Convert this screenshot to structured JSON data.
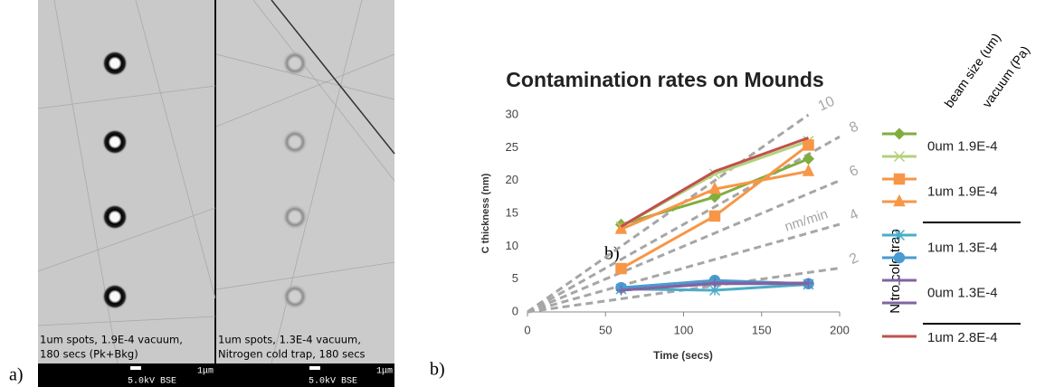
{
  "figure": {
    "panel_a_label": "a)",
    "panel_b_label": "b)",
    "images": [
      {
        "caption": [
          "1um spots, 1.9E-4 vacuum,",
          "180 secs (Pk+Bkg)"
        ],
        "scale": "1μm",
        "info": "5.0kV  BSE"
      },
      {
        "caption": [
          "1um spots, 1.3E-4 vacuum,",
          "Nitrogen cold trap, 180 secs"
        ],
        "scale": "1μm",
        "info": "5.0kV  BSE"
      }
    ]
  },
  "chart_data": {
    "type": "line",
    "title": "Contamination rates on Mounds",
    "x_label": "Time (secs)",
    "y_label": "C thickness (nm)",
    "x": [
      60,
      120,
      180
    ],
    "xlim": [
      0,
      200
    ],
    "xticks": [
      0,
      50,
      100,
      150,
      200
    ],
    "ylim": [
      0,
      30
    ],
    "yticks": [
      0,
      5,
      10,
      15,
      20,
      25,
      30
    ],
    "grid": false,
    "legend": "right",
    "legend_headers": [
      "beam size (um)",
      "vacuum (Pa)"
    ],
    "legend_side_label": "Nitro cold trap",
    "annotation": "b)",
    "rate_lines": {
      "values": [
        10,
        8,
        6,
        4,
        2
      ],
      "label": "nm/min",
      "color": "#a6a6a6"
    },
    "series": [
      {
        "name": "0um 1.9E-4",
        "lines": [
          {
            "color": "#7fae3e",
            "marker": "diamond",
            "values": [
              13.3,
              17.5,
              23.3
            ]
          },
          {
            "color": "#b3d17b",
            "marker": "x",
            "values": [
              13.0,
              21.0,
              26.0
            ]
          }
        ]
      },
      {
        "name": "1um 1.9E-4",
        "lines": [
          {
            "color": "#f79646",
            "marker": "square",
            "values": [
              6.6,
              14.6,
              25.4
            ]
          },
          {
            "color": "#f79646",
            "marker": "triangle",
            "values": [
              12.6,
              18.7,
              21.4
            ]
          }
        ]
      },
      {
        "name": "1um 1.3E-4",
        "lines": [
          {
            "color": "#4bacc6",
            "marker": "asterisk",
            "values": [
              3.5,
              3.3,
              4.2
            ]
          },
          {
            "color": "#4a9bd0",
            "marker": "circle",
            "values": [
              3.7,
              4.8,
              4.3
            ]
          }
        ]
      },
      {
        "name": "0um 1.3E-4",
        "lines": [
          {
            "color": "#8064a2",
            "marker": "plus",
            "values": [
              3.3,
              4.4,
              4.4
            ]
          },
          {
            "color": "#8064a2",
            "marker": "none",
            "values": [
              3.3,
              4.3,
              4.3
            ]
          }
        ]
      },
      {
        "name": "1um 2.8E-4",
        "lines": [
          {
            "color": "#c0504d",
            "marker": "none",
            "values": [
              13.0,
              21.4,
              26.5
            ]
          }
        ]
      }
    ]
  }
}
